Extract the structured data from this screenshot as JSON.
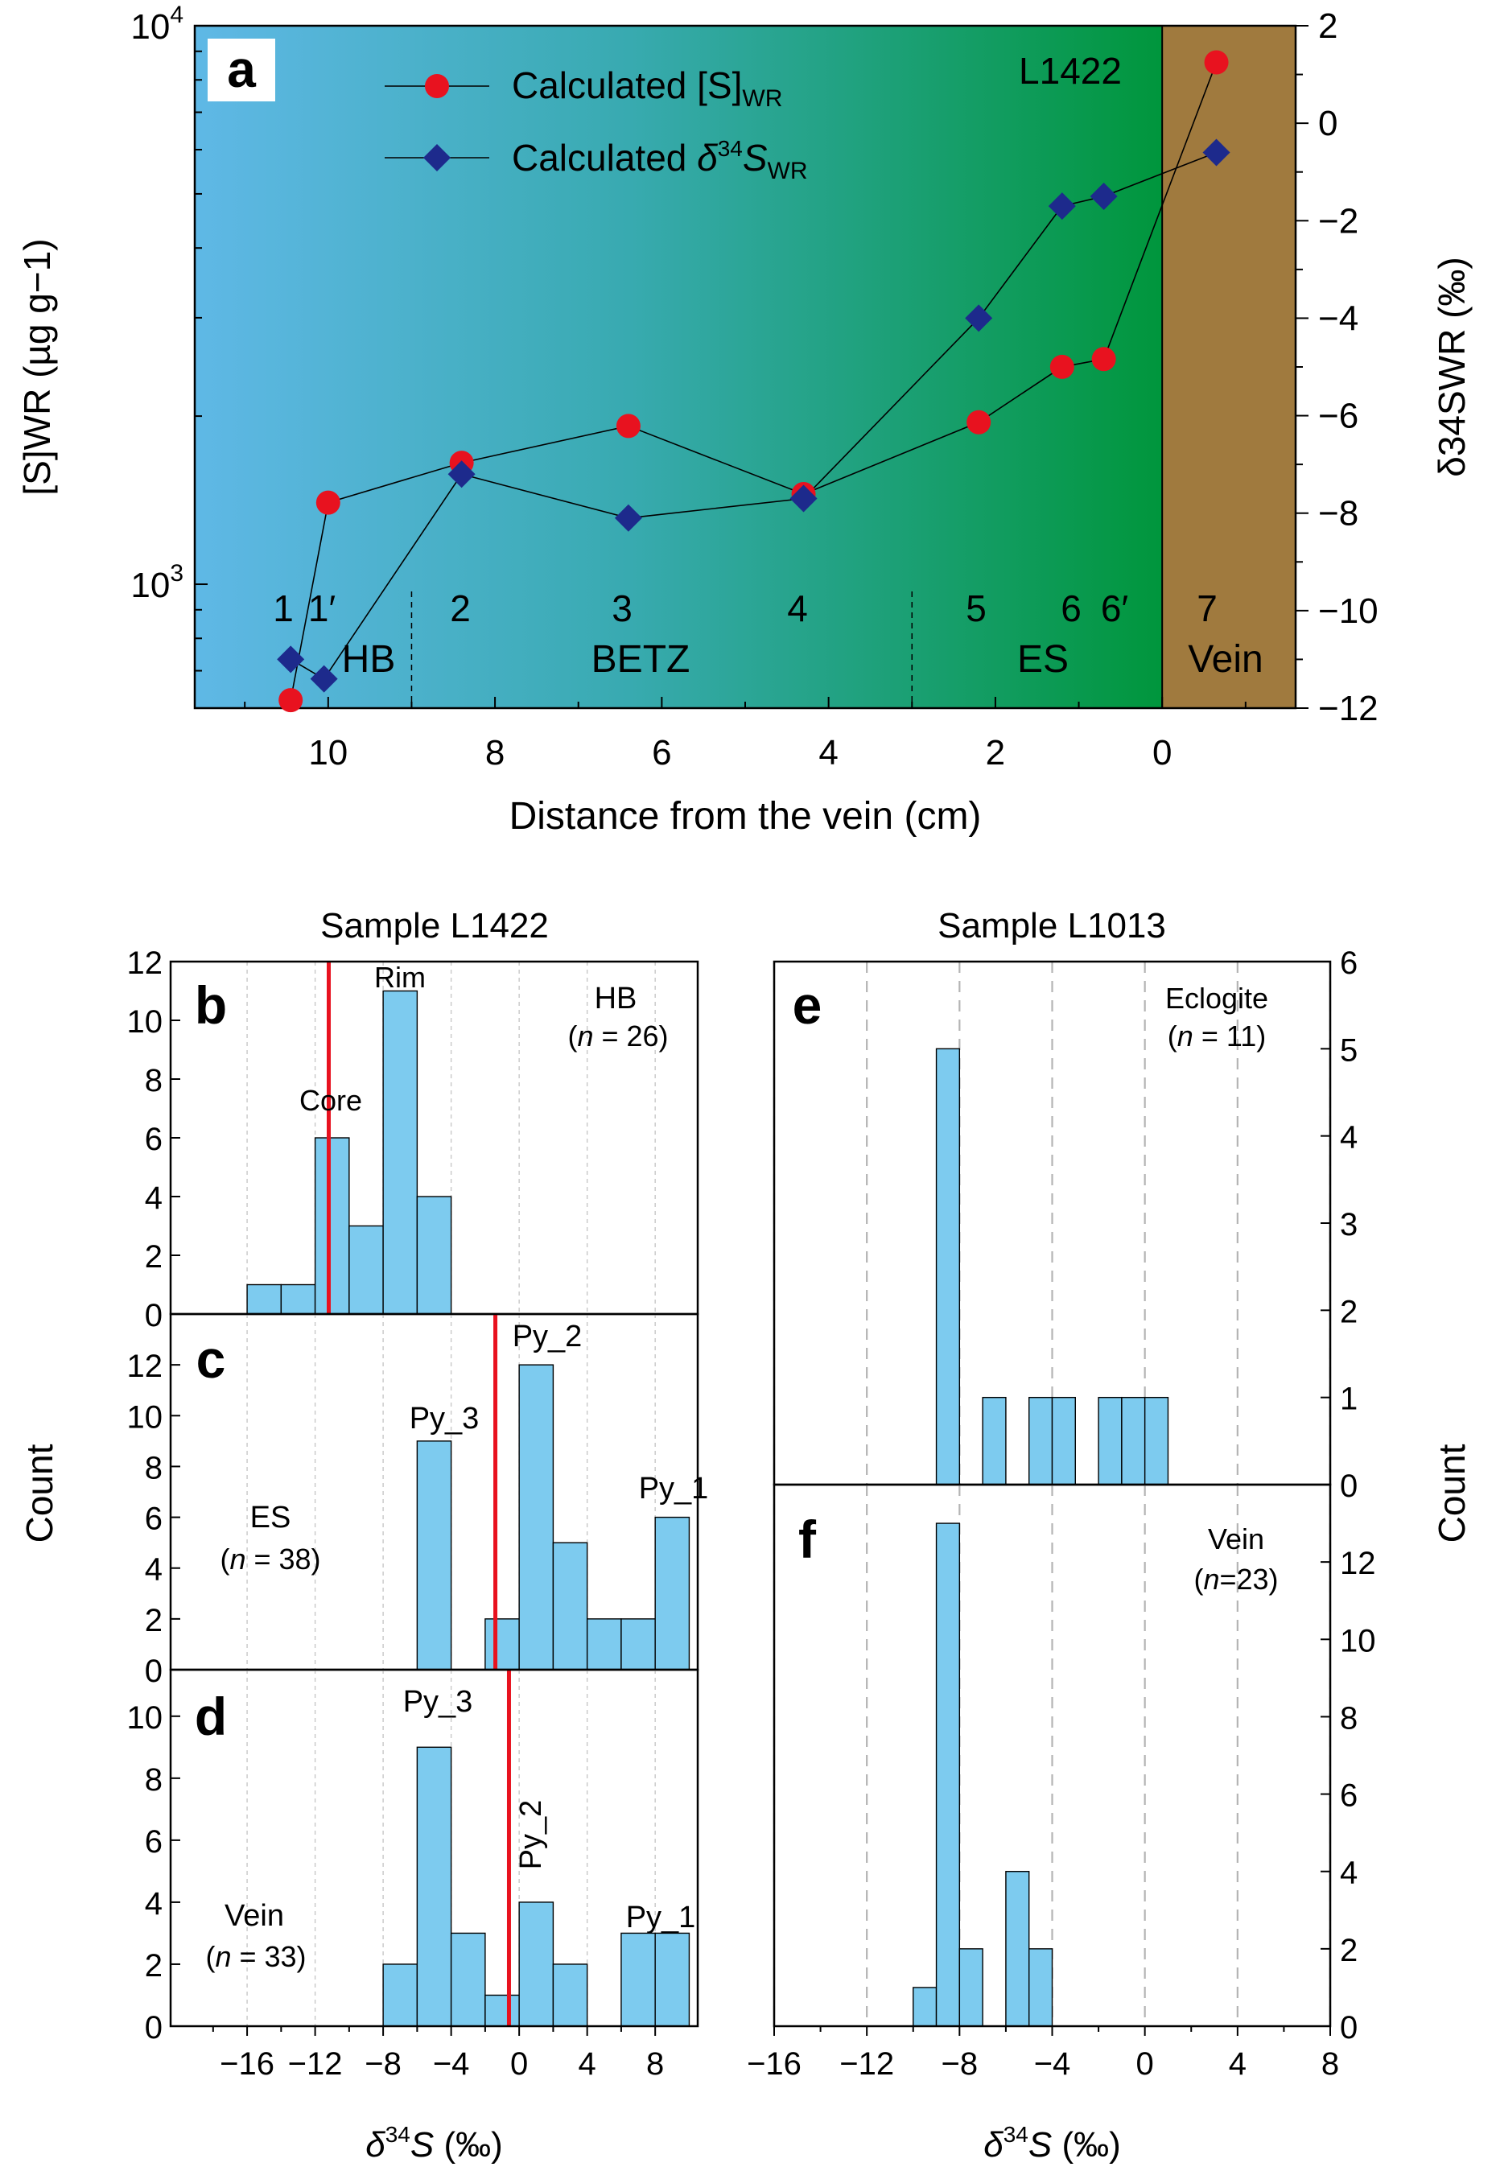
{
  "chart_data": [
    {
      "panel": "a",
      "type": "line",
      "sample_label": "L1422",
      "xlabel": "Distance from the vein (cm)",
      "ylabel_left": "[S]WR (µg g−1)",
      "ylabel_right": "δ34SWR (‰)",
      "xlim": [
        11.6,
        -1.6
      ],
      "x_ticks": [
        10,
        8,
        6,
        4,
        2,
        0
      ],
      "ylim_left": [
        600,
        10000
      ],
      "y_left_scale": "log",
      "ylim_right": [
        -12,
        2
      ],
      "y_right_ticks": [
        2,
        0,
        -2,
        -4,
        -6,
        -8,
        -10,
        -12
      ],
      "legend_placement": "top-left",
      "zones": [
        {
          "label": "HB",
          "x_from": 11.6,
          "x_to": 9.0
        },
        {
          "label": "BETZ",
          "x_from": 9.0,
          "x_to": 3.0
        },
        {
          "label": "ES",
          "x_from": 3.0,
          "x_to": 0.0
        },
        {
          "label": "Vein",
          "x_from": 0.0,
          "x_to": -1.6
        }
      ],
      "sample_numbers": [
        {
          "label": "1",
          "x": 10.5
        },
        {
          "label": "1′",
          "x": 10.05
        },
        {
          "label": "2",
          "x": 8.4
        },
        {
          "label": "3",
          "x": 6.4
        },
        {
          "label": "4",
          "x": 4.3
        },
        {
          "label": "5",
          "x": 2.2
        },
        {
          "label": "6",
          "x": 1.1
        },
        {
          "label": "6′",
          "x": 0.6
        },
        {
          "label": "7",
          "x": -0.65
        }
      ],
      "series": [
        {
          "name": "Calculated [S]WR",
          "axis": "left",
          "color": "#e8121f",
          "marker": "circle",
          "x": [
            10.45,
            10.0,
            8.4,
            6.4,
            4.3,
            2.2,
            1.2,
            0.7,
            -0.65
          ],
          "y": [
            620,
            1400,
            1650,
            1920,
            1450,
            1950,
            2450,
            2530,
            8600
          ]
        },
        {
          "name": "Calculated δ34SWR",
          "axis": "right",
          "color": "#1d2a8c",
          "marker": "diamond",
          "x": [
            10.45,
            10.05,
            8.4,
            6.4,
            4.3,
            2.2,
            1.2,
            0.7,
            -0.65
          ],
          "y": [
            -11.0,
            -11.4,
            -7.2,
            -8.1,
            -7.7,
            -4.0,
            -1.7,
            -1.5,
            -0.6
          ]
        }
      ]
    },
    {
      "panel": "b",
      "type": "bar",
      "sample_group": "Sample L1422",
      "label": "HB",
      "n_text": "(n = 26)",
      "bin_width": 2,
      "ylim": [
        0,
        12
      ],
      "y_ticks": [
        0,
        2,
        4,
        6,
        8,
        10,
        12
      ],
      "bins": [
        -16,
        -14,
        -12,
        -10,
        -8,
        -6,
        -4
      ],
      "counts": [
        1,
        1,
        6,
        3,
        11,
        4
      ],
      "reference_line": -11.2,
      "annotations": [
        "Core",
        "Rim"
      ]
    },
    {
      "panel": "c",
      "type": "bar",
      "label": "ES",
      "n_text": "(n = 38)",
      "bin_width": 2,
      "ylim": [
        0,
        14
      ],
      "y_ticks": [
        0,
        2,
        4,
        6,
        8,
        10,
        12
      ],
      "bins": [
        -6,
        -4,
        -2,
        0,
        2,
        4,
        6,
        8,
        10
      ],
      "counts": [
        9,
        0,
        2,
        12,
        5,
        2,
        2,
        6
      ],
      "reference_line": -1.4,
      "annotations": [
        "Py_3",
        "Py_2",
        "Py_1"
      ]
    },
    {
      "panel": "d",
      "type": "bar",
      "label": "Vein",
      "n_text": "(n = 33)",
      "bin_width": 2,
      "ylim": [
        0,
        11.5
      ],
      "y_ticks": [
        0,
        2,
        4,
        6,
        8,
        10
      ],
      "bins": [
        -8,
        -6,
        -4,
        -2,
        0,
        2,
        4,
        6,
        8,
        10
      ],
      "counts": [
        2,
        9,
        3,
        1,
        4,
        2,
        0,
        3,
        3
      ],
      "reference_line": -0.6,
      "annotations": [
        "Py_3",
        "Py_2",
        "Py_1"
      ],
      "xlabel": "δ34S (‰)",
      "x_ticks": [
        -16,
        -12,
        -8,
        -4,
        0,
        4,
        8
      ]
    },
    {
      "panel": "e",
      "type": "bar",
      "sample_group": "Sample L1013",
      "label": "Eclogite",
      "n_text": "(n = 11)",
      "bin_width": 1,
      "ylim": [
        0,
        6
      ],
      "y_ticks": [
        0,
        1,
        2,
        3,
        4,
        5,
        6
      ],
      "bars": [
        {
          "from": -9,
          "to": -8,
          "count": 5
        },
        {
          "from": -7,
          "to": -6,
          "count": 1
        },
        {
          "from": -5,
          "to": -4,
          "count": 1
        },
        {
          "from": -4,
          "to": -3,
          "count": 1
        },
        {
          "from": -2,
          "to": -1,
          "count": 1
        },
        {
          "from": -1,
          "to": 0,
          "count": 1
        },
        {
          "from": 0,
          "to": 1,
          "count": 1
        }
      ]
    },
    {
      "panel": "f",
      "type": "bar",
      "label": "Vein",
      "n_text": "(n=23)",
      "bin_width": 1,
      "ylim": [
        0,
        14
      ],
      "y_ticks": [
        0,
        2,
        4,
        6,
        8,
        10,
        12
      ],
      "bars": [
        {
          "from": -10,
          "to": -9,
          "count": 1
        },
        {
          "from": -9,
          "to": -8,
          "count": 13
        },
        {
          "from": -8,
          "to": -7,
          "count": 2
        },
        {
          "from": -6,
          "to": -5,
          "count": 4
        },
        {
          "from": -5,
          "to": -4,
          "count": 2
        }
      ],
      "xlabel": "δ34S (‰)",
      "x_ticks": [
        -16,
        -12,
        -8,
        -4,
        0,
        4,
        8
      ]
    }
  ],
  "shared": {
    "ylabel_left": "Count",
    "ylabel_right": "Count",
    "grid_x_values": [
      -16,
      -12,
      -8,
      -4,
      0,
      4,
      8
    ],
    "bar_color": "#7dcbef",
    "ref_line_color": "#e8121f"
  }
}
